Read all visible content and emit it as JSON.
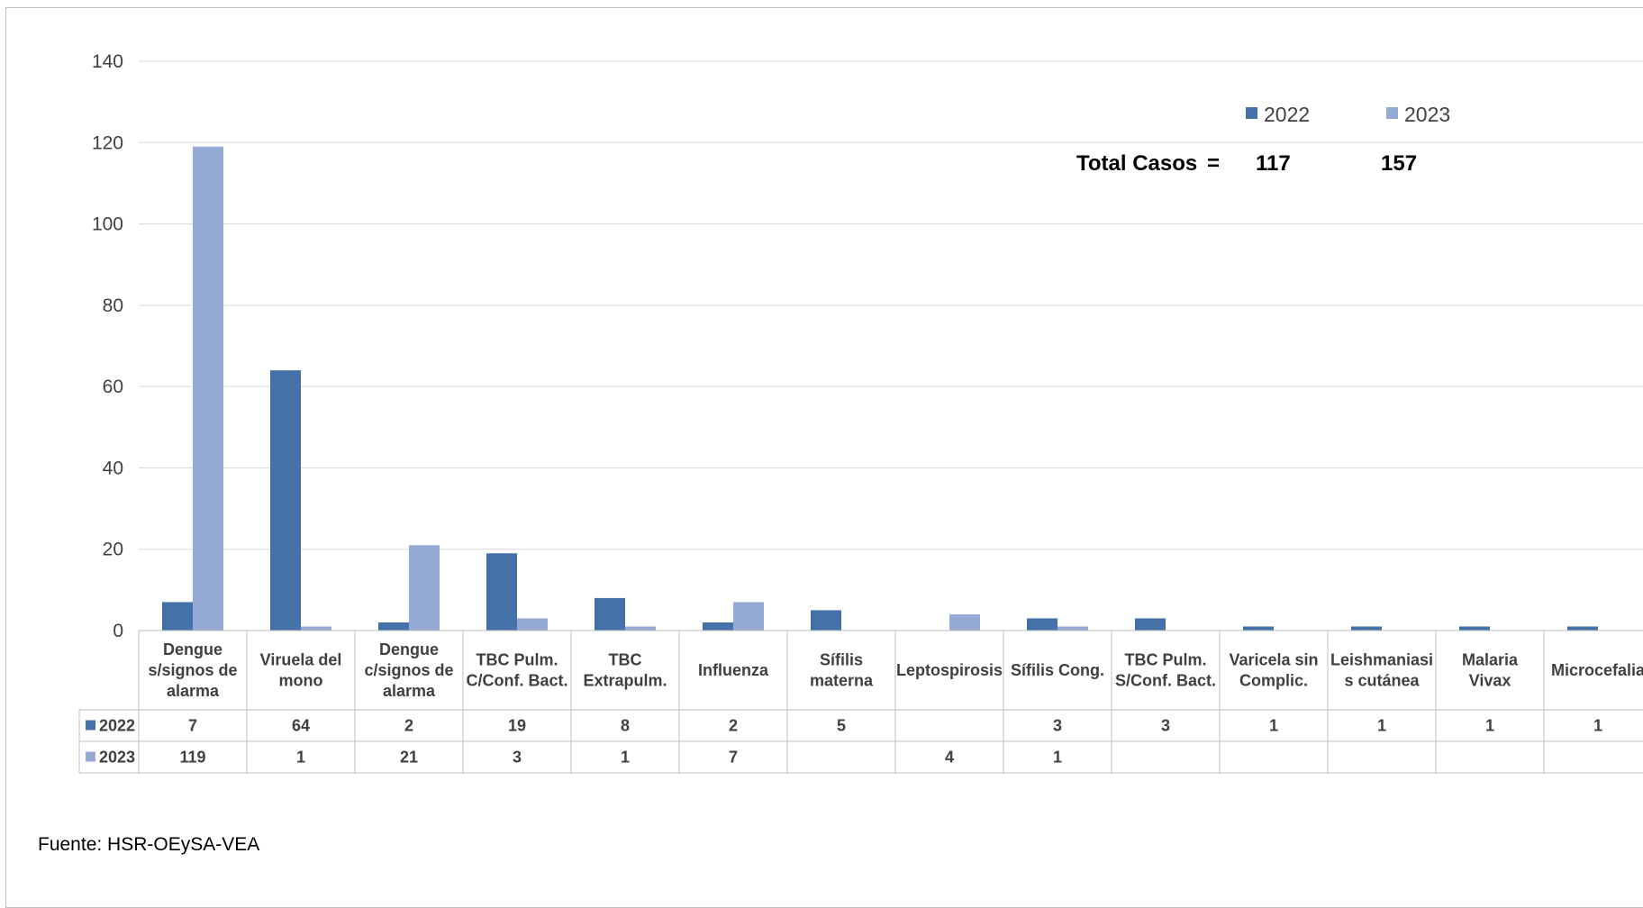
{
  "chart_data": {
    "type": "bar",
    "categories": [
      [
        "Dengue",
        "s/signos de",
        "alarma"
      ],
      [
        "Viruela del",
        "mono"
      ],
      [
        "Dengue",
        "c/signos de",
        "alarma"
      ],
      [
        "TBC Pulm.",
        "C/Conf. Bact."
      ],
      [
        "TBC",
        "Extrapulm."
      ],
      [
        "Influenza"
      ],
      [
        "Sífilis",
        "materna"
      ],
      [
        "Leptospirosis"
      ],
      [
        "Sífilis Cong."
      ],
      [
        "TBC Pulm.",
        "S/Conf. Bact."
      ],
      [
        "Varicela sin",
        "Complic."
      ],
      [
        "Leishmaniasi",
        "s cutánea"
      ],
      [
        "Malaria",
        "Vivax"
      ],
      [
        "Microcefalia"
      ]
    ],
    "series": [
      {
        "name": "2022",
        "color": "#4472a8",
        "values": [
          7,
          64,
          2,
          19,
          8,
          2,
          5,
          null,
          3,
          3,
          1,
          1,
          1,
          1
        ]
      },
      {
        "name": "2023",
        "color": "#94aad4",
        "values": [
          119,
          1,
          21,
          3,
          1,
          7,
          null,
          4,
          1,
          null,
          null,
          null,
          null,
          null
        ]
      }
    ],
    "ylim": [
      0,
      140
    ],
    "yticks": [
      0,
      20,
      40,
      60,
      80,
      100,
      120,
      140
    ],
    "grid": true,
    "legend": "top-right",
    "data_table": true
  },
  "totals": {
    "label": "Total Casos",
    "equals": "=",
    "values": [
      "117",
      "157"
    ]
  },
  "source": "Fuente: HSR-OEySA-VEA"
}
